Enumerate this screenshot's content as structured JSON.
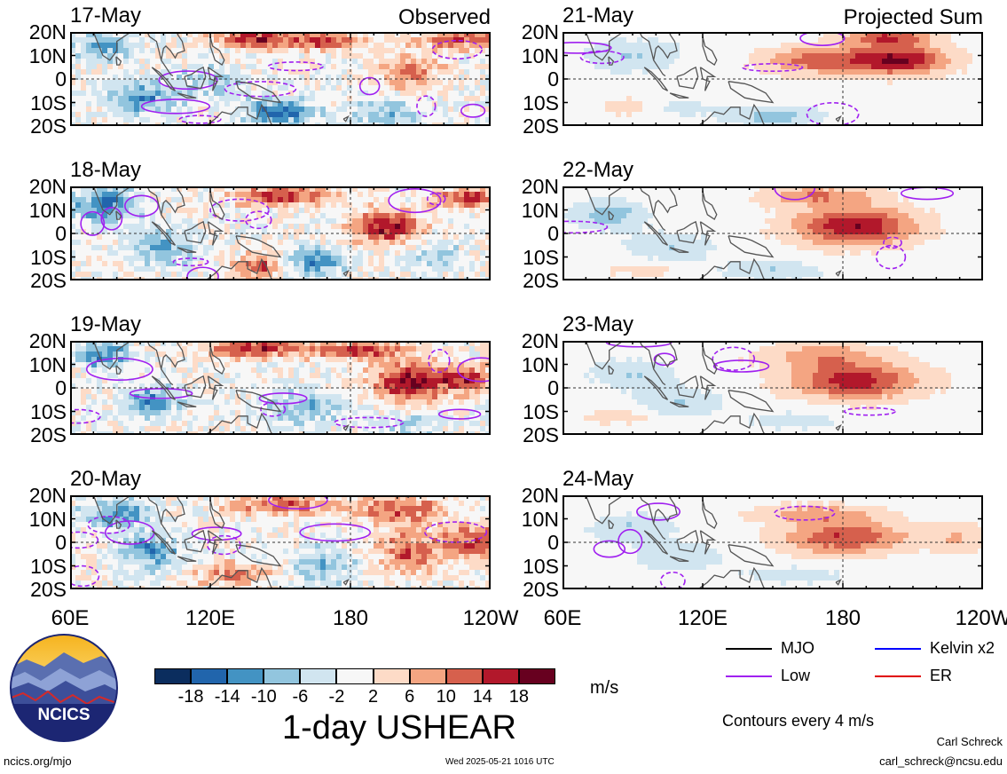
{
  "chart_data": {
    "type": "heatmap",
    "variable": "1-day USHEAR",
    "units": "m/s",
    "x_ticks": [
      "60E",
      "120E",
      "180",
      "120W"
    ],
    "y_ticks": [
      "20N",
      "10N",
      "0",
      "10S",
      "20S"
    ],
    "columns": [
      {
        "label": "Observed",
        "dates": [
          "17-May",
          "18-May",
          "19-May",
          "20-May"
        ]
      },
      {
        "label": "Projected Sum",
        "dates": [
          "21-May",
          "22-May",
          "23-May",
          "24-May"
        ]
      }
    ],
    "colorbar": {
      "ticks": [
        "-18",
        "-14",
        "-10",
        "-6",
        "-2",
        "2",
        "6",
        "10",
        "14",
        "18"
      ],
      "colors": [
        "#0b2d5e",
        "#2165ac",
        "#4393c3",
        "#92c5de",
        "#d1e5f0",
        "#f7f7f7",
        "#fddbc7",
        "#f4a582",
        "#d6604d",
        "#b2182b",
        "#67001f"
      ]
    },
    "legend": [
      {
        "label": "MJO",
        "color": "#000000"
      },
      {
        "label": "Kelvin x2",
        "color": "#0000ff"
      },
      {
        "label": "Low",
        "color": "#a020f0"
      },
      {
        "label": "ER",
        "color": "#e00000"
      }
    ],
    "contour_note": "Contours every 4 m/s"
  },
  "footer": {
    "logo_text": "NCICS",
    "url": "ncics.org/mjo",
    "timestamp": "Wed 2025-05-21 1016 UTC",
    "author": "Carl Schreck",
    "email": "carl_schreck@ncsu.edu"
  }
}
